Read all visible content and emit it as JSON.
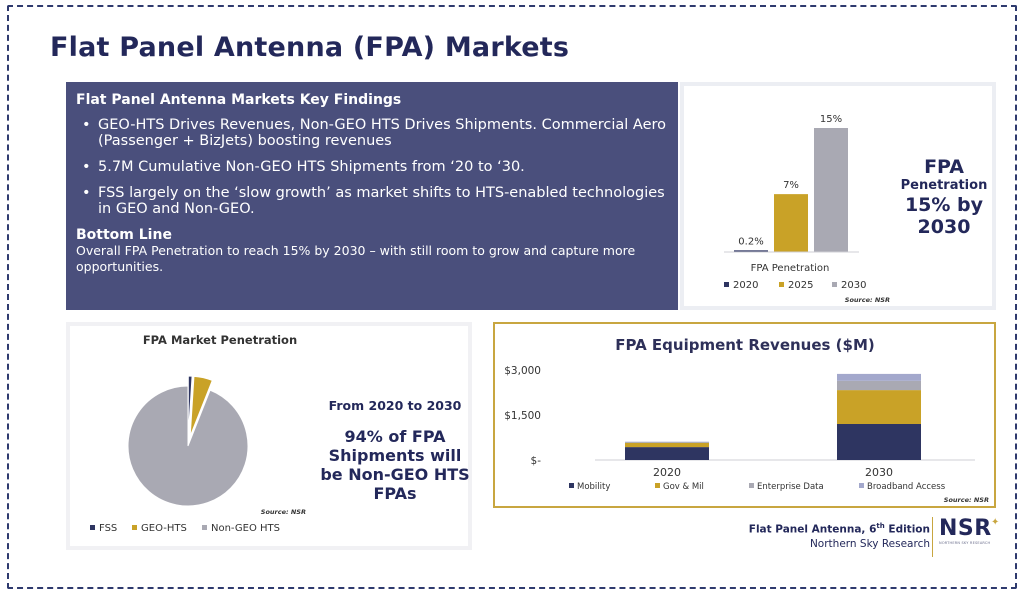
{
  "page_title": "Flat Panel Antenna (FPA) Markets",
  "findings": {
    "title": "Flat Panel Antenna Markets Key Findings",
    "bullet_char": "•",
    "bullets": [
      "GEO-HTS Drives Revenues, Non-GEO HTS Drives Shipments. Commercial Aero (Passenger + BizJets) boosting revenues",
      "5.7M Cumulative Non-GEO HTS Shipments from ‘20 to ‘30.",
      "FSS largely on the ‘slow growth’ as market shifts to HTS-enabled technologies in GEO and Non-GEO."
    ],
    "bottom_line_title": "Bottom Line",
    "bottom_line_text": "Overall FPA Penetration to reach 15% by 2030 – with still room to grow and capture more opportunities."
  },
  "penetration_side": {
    "line1": "FPA",
    "line2": "Penetration",
    "line3": "15% by",
    "line4": "2030"
  },
  "pie_note": {
    "from": "From 2020 to 2030",
    "main": "94% of FPA Shipments will be Non-GEO HTS FPAs"
  },
  "footer": {
    "edition_prefix": "Flat Panel Antenna, 6",
    "edition_sup": "th",
    "edition_suffix": " Edition",
    "company": "Northern Sky Research",
    "logo": "NSR",
    "logo_small": "NORTHERN SKY RESEARCH",
    "logo_star": "✦"
  },
  "colors": {
    "navy": "#2e3561",
    "gold": "#c9a227",
    "gray": "#a9a9b3",
    "lavender": "#a3a8cc",
    "panel": "#4a4f7c"
  },
  "chart_data": [
    {
      "type": "bar",
      "xlabel": "FPA Penetration",
      "categories": [
        "2020",
        "2025",
        "2030"
      ],
      "values": [
        0.2,
        7,
        15
      ],
      "data_labels": [
        "0.2%",
        "7%",
        "15%"
      ],
      "legend": [
        "2020",
        "2025",
        "2030"
      ],
      "legend_position": "bottom",
      "ylim": [
        0,
        15
      ],
      "source": "Source: NSR"
    },
    {
      "type": "pie",
      "title": "FPA Market Penetration",
      "labels": [
        "FSS",
        "GEO-HTS",
        "Non-GEO HTS"
      ],
      "values": [
        1,
        5,
        94
      ],
      "exploded": [
        true,
        true,
        false
      ],
      "legend_position": "bottom",
      "source": "Source: NSR"
    },
    {
      "type": "bar",
      "stacked": true,
      "title": "FPA Equipment Revenues ($M)",
      "categories": [
        "2020",
        "2030"
      ],
      "yticks": [
        0,
        1500,
        3000
      ],
      "ytick_labels": [
        "$-",
        "$1,500",
        "$3,000"
      ],
      "ylim": [
        0,
        3000
      ],
      "series": [
        {
          "name": "Mobility",
          "values": [
            430,
            1200
          ]
        },
        {
          "name": "Gov & Mil",
          "values": [
            140,
            1130
          ]
        },
        {
          "name": "Enterprise Data",
          "values": [
            30,
            310
          ]
        },
        {
          "name": "Broadband Access",
          "values": [
            10,
            230
          ]
        }
      ],
      "legend_position": "bottom",
      "source": "Source: NSR"
    }
  ]
}
